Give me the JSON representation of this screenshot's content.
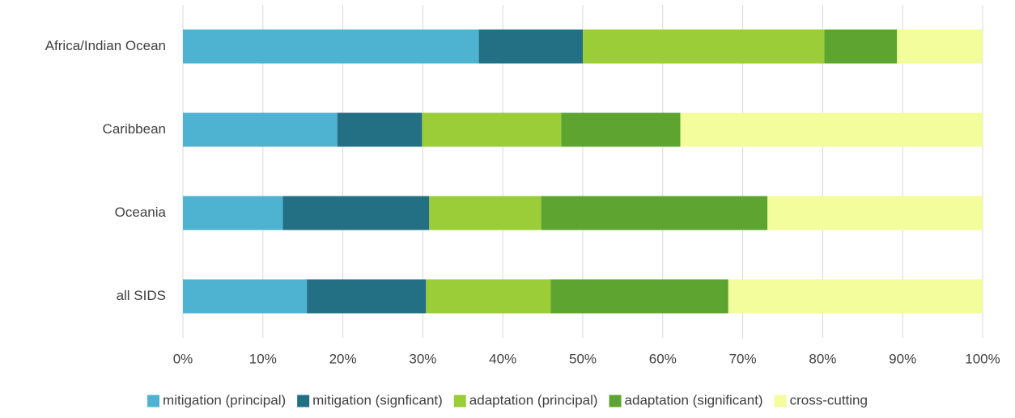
{
  "chart_data": {
    "type": "bar",
    "orientation": "horizontal",
    "stacked": "percent",
    "categories": [
      "Africa/Indian Ocean",
      "Caribbean",
      "Oceania",
      "all SIDS"
    ],
    "series": [
      {
        "name": "mitigation (principal)",
        "color": "#4eb3d0",
        "values": [
          37,
          19.3,
          12.5,
          15.5
        ]
      },
      {
        "name": "mitigation (signficant)",
        "color": "#237085",
        "values": [
          13,
          10.6,
          18.3,
          14.9
        ]
      },
      {
        "name": "adaptation (principal)",
        "color": "#9acd37",
        "values": [
          30.2,
          17.4,
          14,
          15.6
        ]
      },
      {
        "name": "adaptation (significant)",
        "color": "#5ea431",
        "values": [
          9.1,
          14.9,
          28.3,
          22.2
        ]
      },
      {
        "name": "cross-cutting",
        "color": "#f3fd9b",
        "values": [
          10.7,
          37.8,
          26.9,
          31.8
        ]
      }
    ],
    "x_ticks": [
      "0%",
      "10%",
      "20%",
      "30%",
      "40%",
      "50%",
      "60%",
      "70%",
      "80%",
      "90%",
      "100%"
    ],
    "xlim": [
      0,
      100
    ],
    "grid": "vertical",
    "legend_position": "bottom",
    "title": "",
    "xlabel": "",
    "ylabel": ""
  }
}
